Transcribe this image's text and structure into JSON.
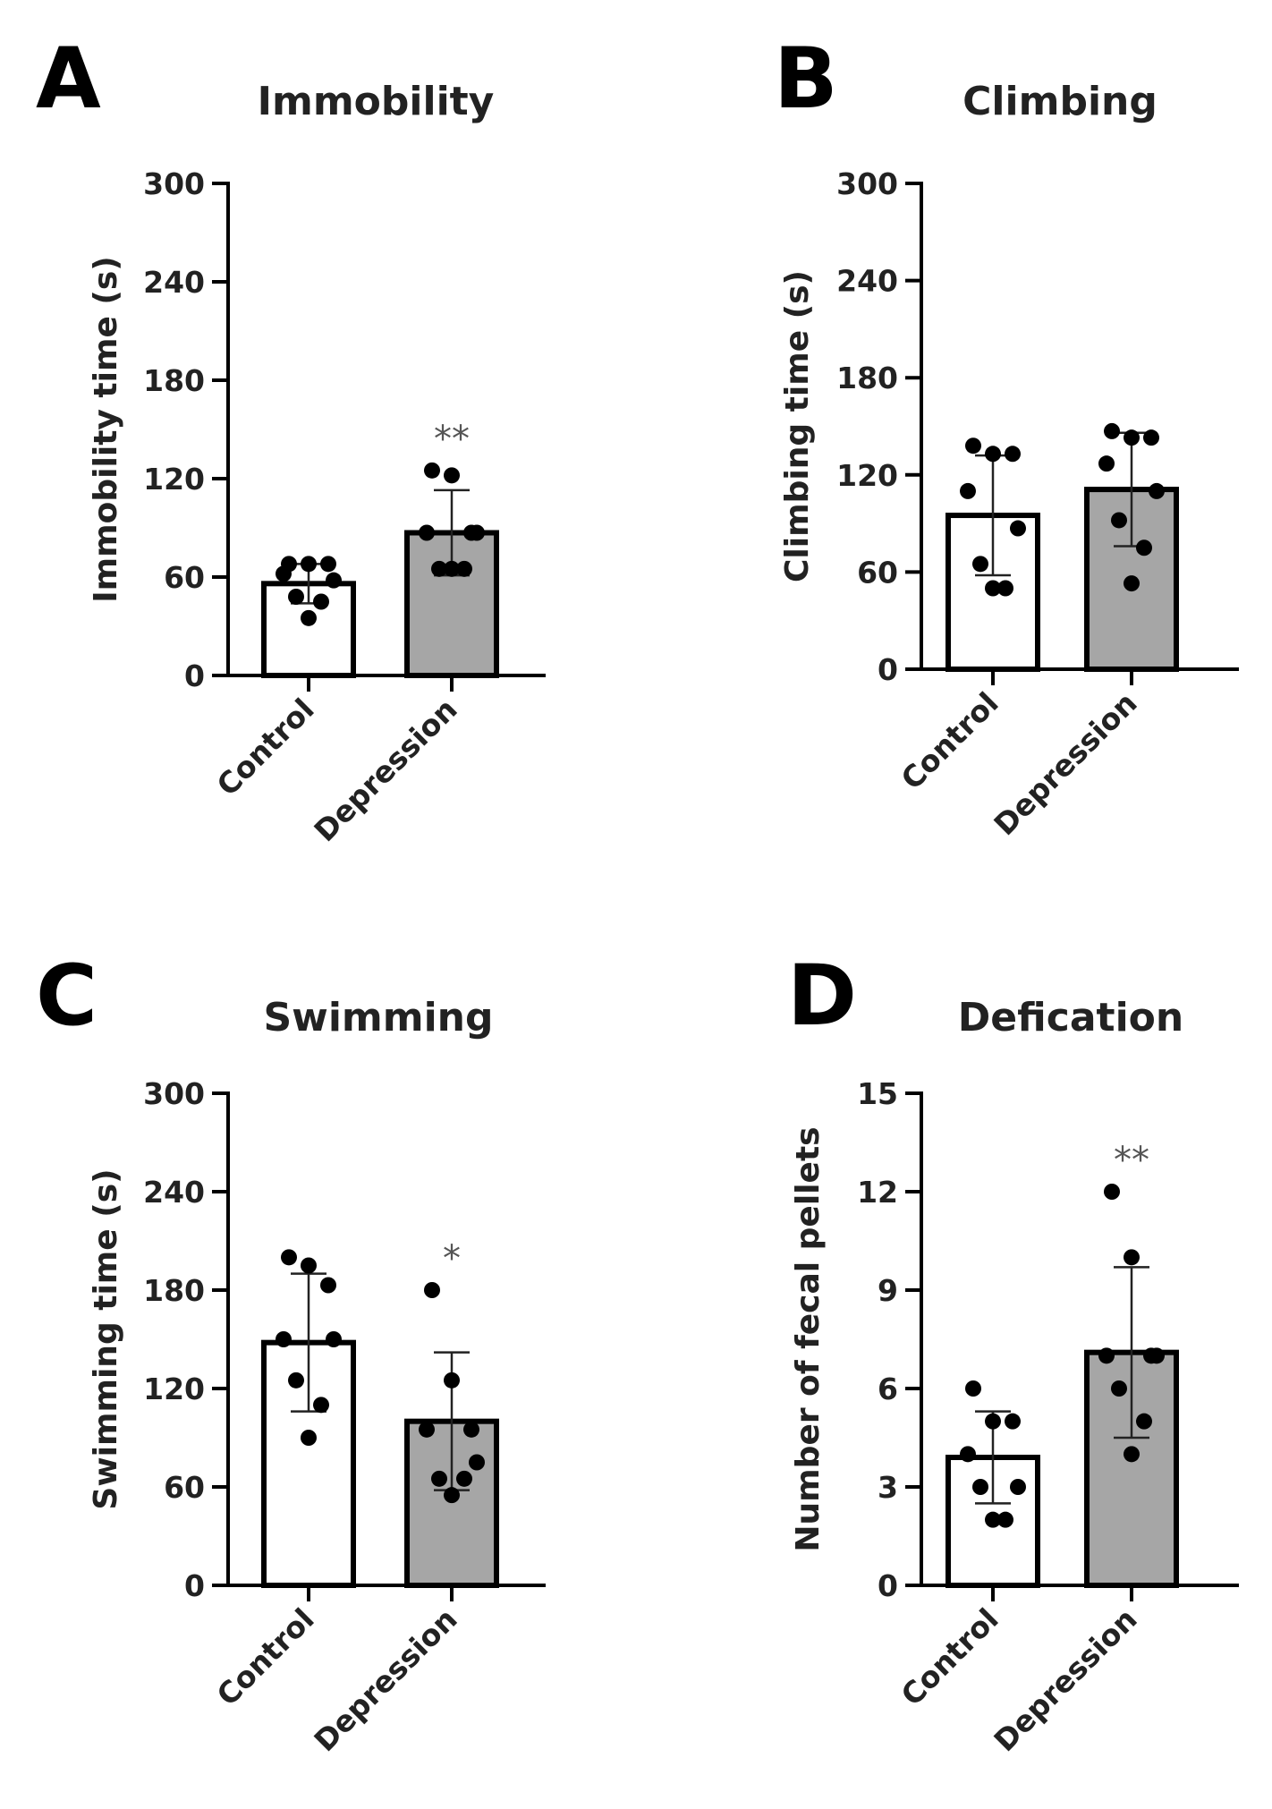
{
  "chart_data": [
    {
      "panel": "A",
      "type": "bar",
      "title": "Immobility",
      "xlabel": "",
      "ylabel": "Immobility time (s)",
      "ylim": [
        0,
        300
      ],
      "yticks": [
        "0",
        "60",
        "120",
        "180",
        "240",
        "300"
      ],
      "categories": [
        "Control",
        "Depression"
      ],
      "values": [
        56,
        87
      ],
      "sd": [
        12,
        26
      ],
      "points": [
        [
          68,
          68,
          68,
          62,
          58,
          48,
          45,
          35
        ],
        [
          125,
          122,
          87,
          87,
          87,
          65,
          65,
          65
        ]
      ],
      "significance": [
        "",
        "**"
      ],
      "bar_colors": [
        "#ffffff",
        "#a6a6a6"
      ]
    },
    {
      "panel": "B",
      "type": "bar",
      "title": "Climbing",
      "xlabel": "",
      "ylabel": "Climbing time (s)",
      "ylim": [
        0,
        300
      ],
      "yticks": [
        "0",
        "60",
        "120",
        "180",
        "240",
        "300"
      ],
      "categories": [
        "Control",
        "Depression"
      ],
      "values": [
        95,
        111
      ],
      "sd": [
        37,
        35
      ],
      "points": [
        [
          138,
          133,
          133,
          110,
          87,
          65,
          50,
          50
        ],
        [
          147,
          143,
          143,
          127,
          110,
          92,
          75,
          53
        ]
      ],
      "significance": [
        "",
        ""
      ],
      "bar_colors": [
        "#ffffff",
        "#a6a6a6"
      ]
    },
    {
      "panel": "C",
      "type": "bar",
      "title": "Swimming",
      "xlabel": "",
      "ylabel": "Swimming time (s)",
      "ylim": [
        0,
        300
      ],
      "yticks": [
        "0",
        "60",
        "120",
        "180",
        "240",
        "300"
      ],
      "categories": [
        "Control",
        "Depression"
      ],
      "values": [
        148,
        100
      ],
      "sd": [
        42,
        42
      ],
      "points": [
        [
          200,
          195,
          183,
          150,
          150,
          125,
          110,
          90
        ],
        [
          180,
          125,
          95,
          95,
          75,
          65,
          65,
          55
        ]
      ],
      "significance": [
        "",
        "*"
      ],
      "bar_colors": [
        "#ffffff",
        "#a6a6a6"
      ]
    },
    {
      "panel": "D",
      "type": "bar",
      "title": "Defication",
      "xlabel": "",
      "ylabel": "Number of fecal pellets",
      "ylim": [
        0,
        15
      ],
      "yticks": [
        "0",
        "3",
        "6",
        "9",
        "12",
        "15"
      ],
      "categories": [
        "Control",
        "Depression"
      ],
      "values": [
        3.9,
        7.1
      ],
      "sd": [
        1.4,
        2.6
      ],
      "points": [
        [
          6,
          5,
          5,
          4,
          3,
          3,
          2,
          2
        ],
        [
          12,
          10,
          7,
          7,
          7,
          6,
          5,
          4
        ]
      ],
      "significance": [
        "",
        "**"
      ],
      "bar_colors": [
        "#ffffff",
        "#a6a6a6"
      ]
    }
  ]
}
